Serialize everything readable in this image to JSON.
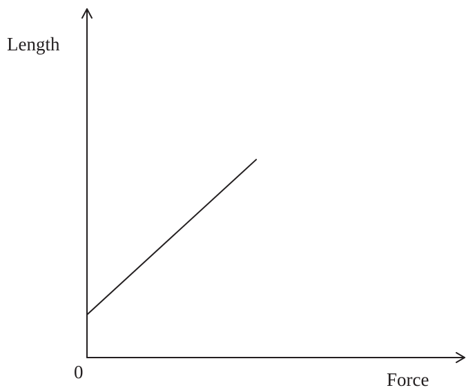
{
  "colors": {
    "ink": "#231f20",
    "background": "#ffffff"
  },
  "chart_data": {
    "type": "line",
    "title": "",
    "xlabel": "Force",
    "ylabel": "Length",
    "origin_label": "0",
    "xlim": [
      0,
      100
    ],
    "ylim": [
      0,
      100
    ],
    "grid": false,
    "legend": "none",
    "series": [
      {
        "x": [
          0,
          44.8
        ],
        "y": [
          12.3,
          56.8
        ]
      }
    ]
  }
}
